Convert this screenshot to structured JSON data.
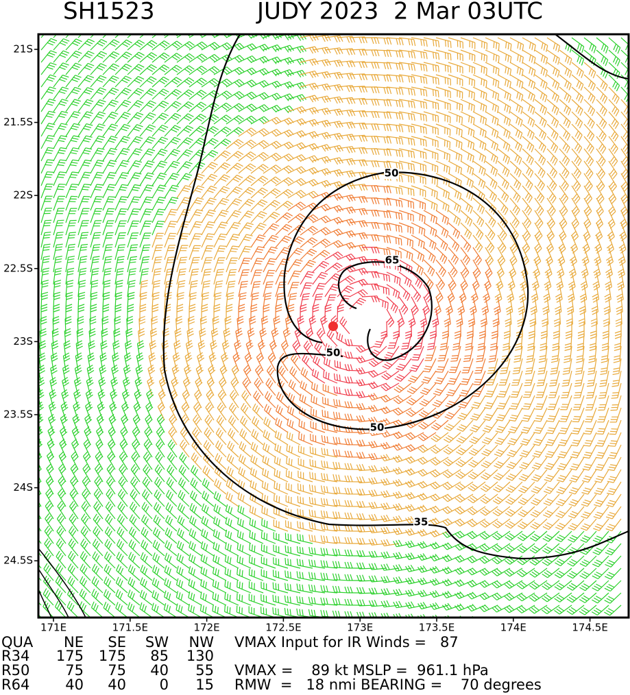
{
  "header": {
    "storm_id": "SH1523",
    "title": "JUDY 2023  2 Mar 03UTC"
  },
  "lat_labels": [
    "21S",
    "21.5S",
    "22S",
    "22.5S",
    "23S",
    "23.5S",
    "24S",
    "24.5S"
  ],
  "lon_labels": [
    "171E",
    "171.5E",
    "172E",
    "172.5E",
    "173E",
    "173.5E",
    "174E",
    "174.5E"
  ],
  "contour_labels": [
    "35",
    "50",
    "50",
    "50",
    "65"
  ],
  "table": {
    "header": [
      "QUA",
      "NE",
      "SE",
      "SW",
      "NW"
    ],
    "rows": [
      [
        "R34",
        175,
        175,
        85,
        130
      ],
      [
        "R50",
        75,
        75,
        40,
        55
      ],
      [
        "R64",
        40,
        40,
        0,
        15
      ]
    ]
  },
  "info": [
    "VMAX Input for IR Winds =   87",
    "VMAX =    89 kt MSLP =  961.1 hPa",
    "RMW  =   18 nmi BEARING =    70 degrees"
  ]
}
